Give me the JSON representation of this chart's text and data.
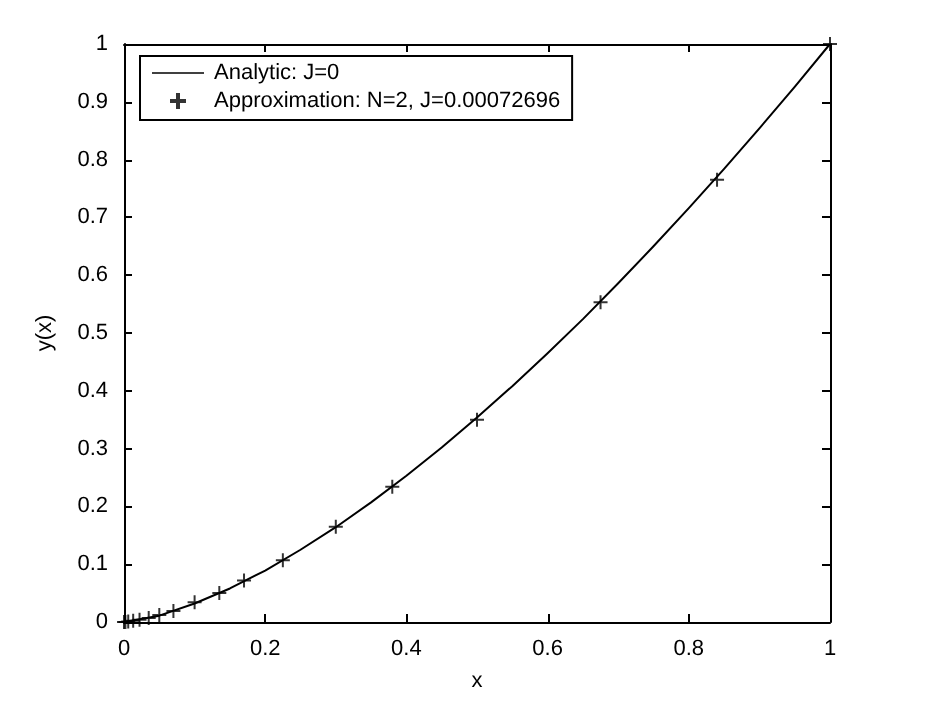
{
  "chart_data": {
    "type": "line",
    "xlabel": "x",
    "ylabel": "y(x)",
    "xlim": [
      0,
      1
    ],
    "ylim": [
      0,
      1
    ],
    "xticks": [
      0,
      0.2,
      0.4,
      0.6,
      0.8,
      1
    ],
    "yticks": [
      0,
      0.1,
      0.2,
      0.3,
      0.4,
      0.5,
      0.6,
      0.7,
      0.8,
      0.9,
      1
    ],
    "grid": false,
    "legend": "top left",
    "series": [
      {
        "name": "Analytic: J=0",
        "color": "#000000",
        "line_style": "solid",
        "marker": "none",
        "x": [
          0,
          0.05,
          0.1,
          0.15,
          0.2,
          0.25,
          0.3,
          0.35,
          0.4,
          0.45,
          0.5,
          0.55,
          0.6,
          0.65,
          0.7,
          0.75,
          0.8,
          0.85,
          0.9,
          0.95,
          1
        ],
        "values": [
          0,
          0.011,
          0.032,
          0.058,
          0.089,
          0.125,
          0.164,
          0.207,
          0.253,
          0.302,
          0.354,
          0.408,
          0.465,
          0.524,
          0.586,
          0.65,
          0.716,
          0.784,
          0.854,
          0.926,
          1
        ]
      },
      {
        "name": "Approximation: N=2, J=0.00072696",
        "type": "scatter",
        "color": "#000000",
        "marker": "cross",
        "x": [
          0,
          0.002,
          0.006,
          0.013,
          0.022,
          0.035,
          0.05,
          0.07,
          0.1,
          0.135,
          0.17,
          0.225,
          0.3,
          0.38,
          0.5,
          0.675,
          0.84,
          1
        ],
        "values": [
          0,
          0,
          0.001,
          0.002,
          0.004,
          0.007,
          0.012,
          0.019,
          0.034,
          0.05,
          0.072,
          0.107,
          0.165,
          0.234,
          0.35,
          0.553,
          0.765,
          1
        ]
      }
    ]
  }
}
